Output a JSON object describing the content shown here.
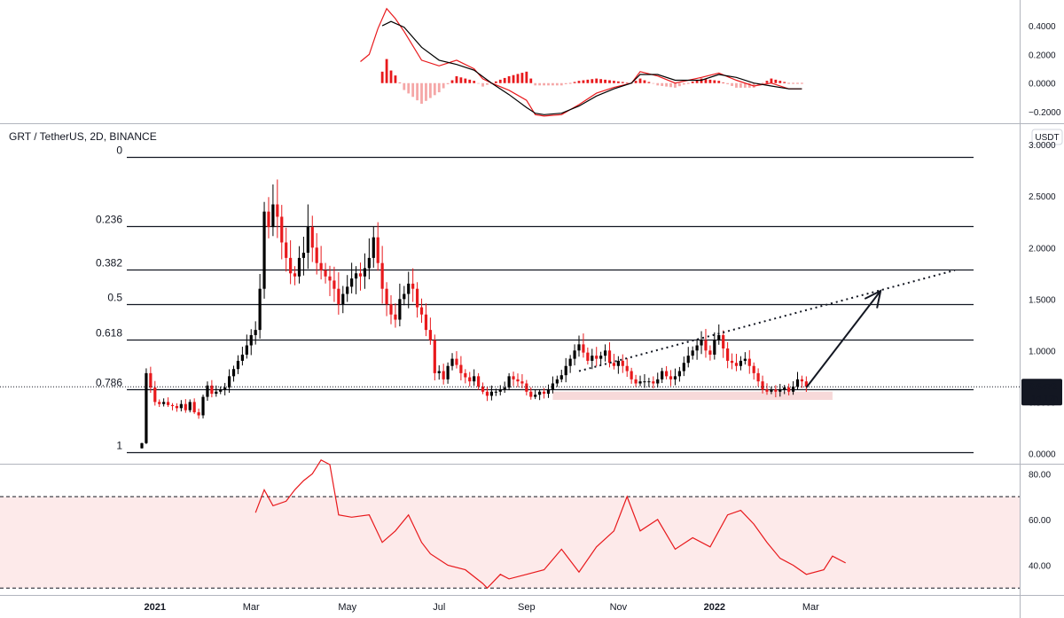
{
  "colors": {
    "up": "#000000",
    "down": "#e8191c",
    "macd_line": "#000000",
    "signal_line": "#e8191c",
    "hist_pos": "#e8191c",
    "hist_neg": "#f5a7a7",
    "rsi_line": "#e8191c",
    "rsi_band": "#fdeaea",
    "support_zone": "#f7d9d9",
    "price_tag": "#131722"
  },
  "chart_data": [
    {
      "panel": "macd",
      "type": "line",
      "y_ticks": [
        "0.4000",
        "0.2000",
        "0.0000",
        "−0.2000"
      ],
      "ylim": [
        -0.28,
        0.58
      ],
      "macd": [
        [
          50,
          0.15
        ],
        [
          52,
          0.2
        ],
        [
          54,
          0.38
        ],
        [
          56,
          0.52
        ],
        [
          58,
          0.45
        ],
        [
          60,
          0.36
        ],
        [
          64,
          0.16
        ],
        [
          68,
          0.12
        ],
        [
          72,
          0.16
        ],
        [
          76,
          0.1
        ],
        [
          78,
          0.03
        ],
        [
          80,
          0.0
        ],
        [
          84,
          -0.05
        ],
        [
          88,
          -0.12
        ],
        [
          90,
          -0.22
        ],
        [
          92,
          -0.23
        ],
        [
          96,
          -0.22
        ],
        [
          100,
          -0.15
        ],
        [
          104,
          -0.07
        ],
        [
          108,
          -0.03
        ],
        [
          112,
          0.0
        ],
        [
          114,
          0.08
        ],
        [
          118,
          0.05
        ],
        [
          122,
          0.0
        ],
        [
          128,
          0.04
        ],
        [
          132,
          0.07
        ],
        [
          136,
          0.02
        ],
        [
          140,
          -0.02
        ],
        [
          144,
          0.0
        ],
        [
          148,
          -0.04
        ],
        [
          151,
          -0.04
        ]
      ],
      "signal": [
        [
          55,
          0.4
        ],
        [
          57,
          0.43
        ],
        [
          60,
          0.39
        ],
        [
          64,
          0.25
        ],
        [
          68,
          0.16
        ],
        [
          72,
          0.13
        ],
        [
          76,
          0.09
        ],
        [
          80,
          0.0
        ],
        [
          84,
          -0.08
        ],
        [
          88,
          -0.17
        ],
        [
          90,
          -0.21
        ],
        [
          92,
          -0.22
        ],
        [
          96,
          -0.21
        ],
        [
          100,
          -0.16
        ],
        [
          104,
          -0.09
        ],
        [
          108,
          -0.04
        ],
        [
          112,
          0.0
        ],
        [
          114,
          0.06
        ],
        [
          118,
          0.06
        ],
        [
          122,
          0.02
        ],
        [
          128,
          0.02
        ],
        [
          132,
          0.06
        ],
        [
          136,
          0.04
        ],
        [
          140,
          0.0
        ],
        [
          144,
          -0.02
        ],
        [
          148,
          -0.04
        ],
        [
          151,
          -0.04
        ]
      ]
    },
    {
      "panel": "price",
      "type": "candlestick",
      "symbol": "GRT / TetherUS, 2D, BINANCE",
      "currency": "USDT",
      "y_ticks": [
        "3.0000",
        "2.5000",
        "2.0000",
        "1.5000",
        "1.0000",
        "0.5000",
        "0.0000"
      ],
      "ylim": [
        -0.1,
        3.2
      ],
      "fib_levels": [
        {
          "label": "0",
          "value": 2.88
        },
        {
          "label": "0.236",
          "value": 2.21
        },
        {
          "label": "0.382",
          "value": 1.79
        },
        {
          "label": "0.5",
          "value": 1.45
        },
        {
          "label": "0.618",
          "value": 1.11
        },
        {
          "label": "0.786",
          "value": 0.62
        },
        {
          "label": "1",
          "value": 0.01
        }
      ],
      "support_zone": {
        "from_bar": 94,
        "to_bar": 158,
        "low": 0.52,
        "high": 0.6
      },
      "trendline": {
        "x0": 100,
        "y0": 0.8,
        "x1": 186,
        "y1": 1.78
      },
      "arrow": {
        "x0": 152,
        "y0": 0.64,
        "x1": 169,
        "y1": 1.58
      },
      "last_price": "0.6472",
      "countdown": "1d 12h",
      "closes": [
        0.1,
        0.78,
        0.64,
        0.5,
        0.48,
        0.5,
        0.47,
        0.46,
        0.44,
        0.48,
        0.42,
        0.5,
        0.4,
        0.37,
        0.55,
        0.66,
        0.58,
        0.6,
        0.62,
        0.64,
        0.75,
        0.82,
        0.9,
        0.96,
        1.05,
        1.15,
        1.2,
        1.6,
        2.35,
        2.2,
        2.42,
        2.3,
        2.05,
        1.9,
        1.75,
        1.72,
        1.9,
        1.95,
        2.2,
        2.0,
        1.85,
        1.78,
        1.72,
        1.68,
        1.6,
        1.45,
        1.55,
        1.62,
        1.7,
        1.75,
        1.72,
        1.8,
        1.9,
        2.1,
        1.85,
        1.6,
        1.45,
        1.35,
        1.3,
        1.5,
        1.55,
        1.65,
        1.6,
        1.42,
        1.35,
        1.2,
        1.1,
        0.78,
        0.8,
        0.72,
        0.85,
        0.92,
        0.86,
        0.78,
        0.74,
        0.7,
        0.75,
        0.65,
        0.6,
        0.56,
        0.6,
        0.6,
        0.62,
        0.64,
        0.75,
        0.72,
        0.7,
        0.68,
        0.6,
        0.55,
        0.57,
        0.6,
        0.58,
        0.62,
        0.68,
        0.72,
        0.76,
        0.85,
        0.92,
        1.0,
        1.06,
        0.98,
        0.9,
        0.95,
        0.92,
        0.95,
        1.0,
        0.88,
        0.85,
        0.9,
        0.85,
        0.8,
        0.72,
        0.68,
        0.7,
        0.7,
        0.7,
        0.68,
        0.72,
        0.8,
        0.75,
        0.72,
        0.75,
        0.8,
        0.88,
        0.95,
        1.0,
        1.05,
        1.1,
        1.0,
        0.96,
        1.1,
        1.15,
        1.02,
        0.9,
        0.88,
        0.85,
        0.9,
        0.92,
        0.85,
        0.78,
        0.7,
        0.62,
        0.6,
        0.62,
        0.6,
        0.62,
        0.64,
        0.6,
        0.65,
        0.72,
        0.7,
        0.65
      ]
    },
    {
      "panel": "rsi",
      "type": "line",
      "y_ticks": [
        "80.00",
        "60.00",
        "40.00"
      ],
      "ylim": [
        27,
        84
      ],
      "band": [
        30,
        70
      ],
      "values": [
        [
          26,
          63
        ],
        [
          28,
          73
        ],
        [
          30,
          66
        ],
        [
          33,
          68
        ],
        [
          35,
          73
        ],
        [
          37,
          77
        ],
        [
          39,
          80
        ],
        [
          41,
          86
        ],
        [
          43,
          84
        ],
        [
          45,
          62
        ],
        [
          48,
          61
        ],
        [
          52,
          62
        ],
        [
          55,
          50
        ],
        [
          58,
          55
        ],
        [
          61,
          62
        ],
        [
          64,
          50
        ],
        [
          66,
          45
        ],
        [
          70,
          40
        ],
        [
          74,
          38
        ],
        [
          78,
          32
        ],
        [
          79,
          30
        ],
        [
          82,
          36
        ],
        [
          84,
          34
        ],
        [
          88,
          36
        ],
        [
          92,
          38
        ],
        [
          96,
          47
        ],
        [
          100,
          37
        ],
        [
          104,
          48
        ],
        [
          108,
          55
        ],
        [
          111,
          70
        ],
        [
          114,
          55
        ],
        [
          118,
          60
        ],
        [
          122,
          47
        ],
        [
          126,
          52
        ],
        [
          130,
          48
        ],
        [
          134,
          62
        ],
        [
          137,
          64
        ],
        [
          140,
          58
        ],
        [
          143,
          50
        ],
        [
          146,
          43
        ],
        [
          149,
          40
        ],
        [
          152,
          36
        ],
        [
          156,
          38
        ],
        [
          158,
          44
        ],
        [
          161,
          41
        ]
      ]
    }
  ],
  "x_axis": {
    "labels": [
      {
        "text": "2021",
        "bold": true
      },
      {
        "text": "Mar",
        "bold": false
      },
      {
        "text": "May",
        "bold": false
      },
      {
        "text": "Jul",
        "bold": false
      },
      {
        "text": "Sep",
        "bold": false
      },
      {
        "text": "Nov",
        "bold": false
      },
      {
        "text": "2022",
        "bold": true
      },
      {
        "text": "Mar",
        "bold": false
      }
    ],
    "label_bars": [
      3,
      25,
      47,
      68,
      88,
      109,
      131,
      153
    ]
  }
}
